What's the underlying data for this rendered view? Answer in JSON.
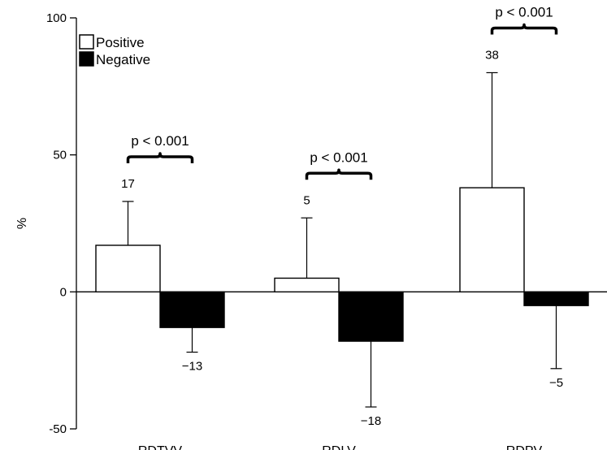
{
  "chart_data": {
    "type": "bar",
    "title": "",
    "xlabel": "",
    "ylabel": "%",
    "ylim": [
      -50,
      100
    ],
    "yticks": [
      -50,
      0,
      50,
      100
    ],
    "grid": false,
    "legend_position": "top-left",
    "categories": [
      "RDTVV",
      "RDLV",
      "RDPV"
    ],
    "series": [
      {
        "name": "Positive",
        "color": "#ffffff",
        "values": [
          17,
          5,
          38
        ],
        "labels": [
          "17",
          "5",
          "38"
        ],
        "error_upper": [
          33,
          27,
          80
        ]
      },
      {
        "name": "Negative",
        "color": "#000000",
        "values": [
          -13,
          -18,
          -5
        ],
        "labels": [
          "−13",
          "−18",
          "−5"
        ],
        "error_lower": [
          -22,
          -42,
          -28
        ]
      }
    ],
    "annotations": [
      "p < 0.001",
      "p < 0.001",
      "p < 0.001"
    ]
  }
}
